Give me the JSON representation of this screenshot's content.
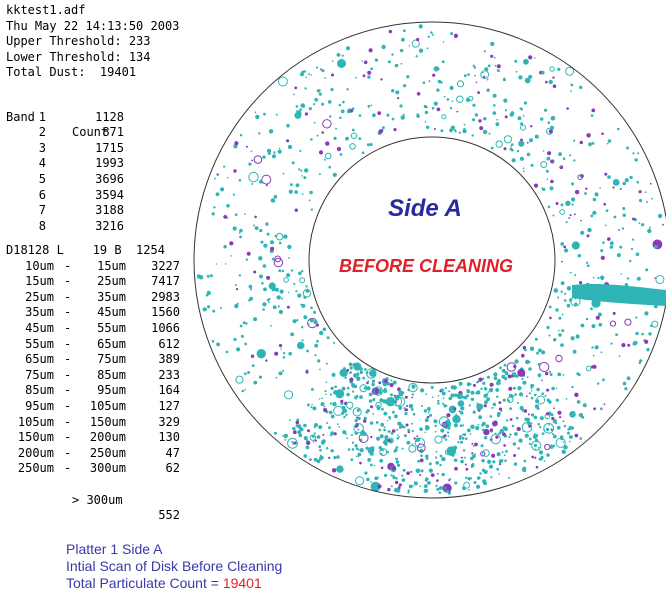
{
  "header": {
    "filename": "kktest1.adf",
    "datetime": "Thu May 22 14:13:50 2003",
    "upper_threshold": "Upper Threshold: 233",
    "lower_threshold": "Lower Threshold: 134",
    "total_dust": "Total Dust:  19401"
  },
  "bands": {
    "header_band": "Band",
    "header_count": "Count",
    "rows": [
      {
        "band": "1",
        "count": "1128"
      },
      {
        "band": "2",
        "count": "871"
      },
      {
        "band": "3",
        "count": "1715"
      },
      {
        "band": "4",
        "count": "1993"
      },
      {
        "band": "5",
        "count": "3696"
      },
      {
        "band": "6",
        "count": "3594"
      },
      {
        "band": "7",
        "count": "3188"
      },
      {
        "band": "8",
        "count": "3216"
      }
    ]
  },
  "summary_line": "D18128 L    19 B  1254",
  "sizes": [
    {
      "min": "10um",
      "max": "15um",
      "count": "3227"
    },
    {
      "min": "15um",
      "max": "25um",
      "count": "7417"
    },
    {
      "min": "25um",
      "max": "35um",
      "count": "2983"
    },
    {
      "min": "35um",
      "max": "45um",
      "count": "1560"
    },
    {
      "min": "45um",
      "max": "55um",
      "count": "1066"
    },
    {
      "min": "55um",
      "max": "65um",
      "count": "612"
    },
    {
      "min": "65um",
      "max": "75um",
      "count": "389"
    },
    {
      "min": "75um",
      "max": "85um",
      "count": "233"
    },
    {
      "min": "85um",
      "max": "95um",
      "count": "164"
    },
    {
      "min": "95um",
      "max": "105um",
      "count": "127"
    },
    {
      "min": "105um",
      "max": "150um",
      "count": "329"
    },
    {
      "min": "150um",
      "max": "200um",
      "count": "130"
    },
    {
      "min": "200um",
      "max": "250um",
      "count": "47"
    },
    {
      "min": "250um",
      "max": "300um",
      "count": "62"
    }
  ],
  "size_last": {
    "label": "> 300um",
    "count": "552"
  },
  "disk": {
    "side_label": "Side A",
    "status_label": "BEFORE CLEANING"
  },
  "caption": {
    "line1": "Platter 1 Side A",
    "line2": "Intial Scan of Disk Before Cleaning",
    "line3_prefix": "Total Particulate Count = ",
    "line3_value": "19401"
  },
  "colors": {
    "particle_primary": "#2fb5b5",
    "particle_secondary": "#8a3ab8",
    "side_label": "#2a2aa0",
    "status_label": "#e0202a",
    "caption": "#3a3aa8"
  }
}
